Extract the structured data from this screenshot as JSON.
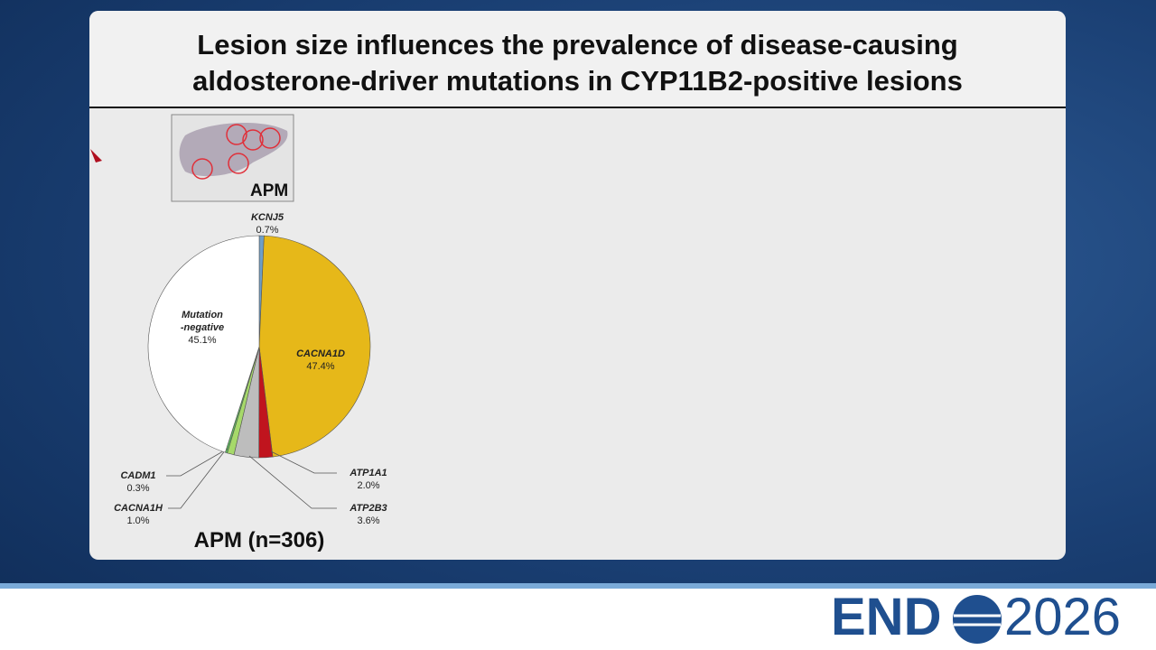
{
  "slide": {
    "title": "Lesion size influences the prevalence of disease-causing aldosterone-driver mutations in CYP11B2-positive lesions",
    "image_label": "APM",
    "logo": {
      "left": "END",
      "right": "2026"
    }
  },
  "chart_data": {
    "type": "pie",
    "title": "APM (n=306)",
    "categories": [
      "KCNJ5",
      "CACNA1D",
      "ATP1A1",
      "ATP2B3",
      "CACNA1H",
      "CADM1",
      "Mutation\n-negative"
    ],
    "values": [
      0.7,
      47.4,
      2.0,
      3.6,
      1.0,
      0.3,
      45.1
    ],
    "value_labels": [
      "0.7%",
      "47.4%",
      "2.0%",
      "3.6%",
      "1.0%",
      "0.3%",
      "45.1%"
    ],
    "colors": [
      "#6f9fc8",
      "#e6b819",
      "#c0141e",
      "#bdbdbd",
      "#a6d96a",
      "#5cb85c",
      "#ffffff"
    ]
  }
}
